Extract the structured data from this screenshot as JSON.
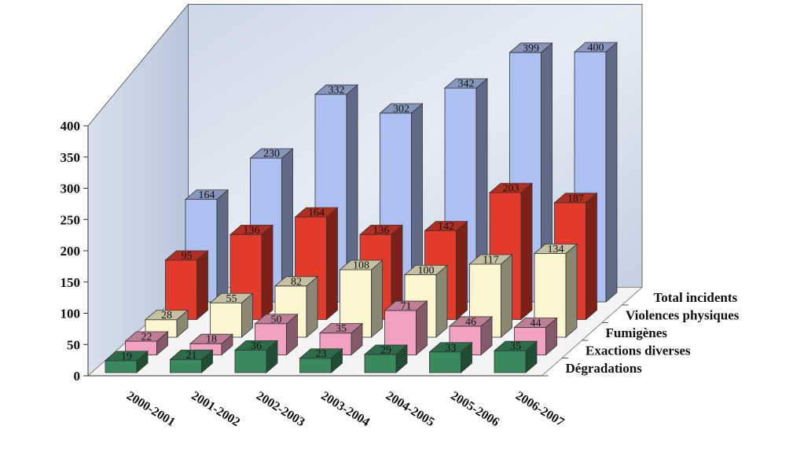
{
  "chart_data": {
    "type": "bar",
    "title": "",
    "xlabel": "",
    "ylabel": "",
    "ylim": [
      0,
      400
    ],
    "yticks": [
      0,
      50,
      100,
      150,
      200,
      250,
      300,
      350,
      400
    ],
    "categories": [
      "2000-2001",
      "2001-2002",
      "2002-2003",
      "2003-2004",
      "2004-2005",
      "2005-2006",
      "2006-2007"
    ],
    "series": [
      {
        "name": "Total incidents",
        "values": [
          164,
          230,
          332,
          302,
          342,
          399,
          400
        ],
        "color": "#aebff2"
      },
      {
        "name": "Violences physiques",
        "values": [
          95,
          136,
          164,
          136,
          142,
          203,
          187
        ],
        "color": "#e33b2b"
      },
      {
        "name": "Fumigènes",
        "values": [
          28,
          55,
          82,
          108,
          100,
          117,
          134
        ],
        "color": "#fbf6cf"
      },
      {
        "name": "Exactions diverses",
        "values": [
          22,
          18,
          50,
          35,
          71,
          46,
          44
        ],
        "color": "#f2a1c0"
      },
      {
        "name": "Dégradations",
        "values": [
          19,
          21,
          36,
          23,
          29,
          33,
          35
        ],
        "color": "#3a8a5f"
      }
    ],
    "grid": false,
    "legend": "depth-axis labels on the right"
  }
}
